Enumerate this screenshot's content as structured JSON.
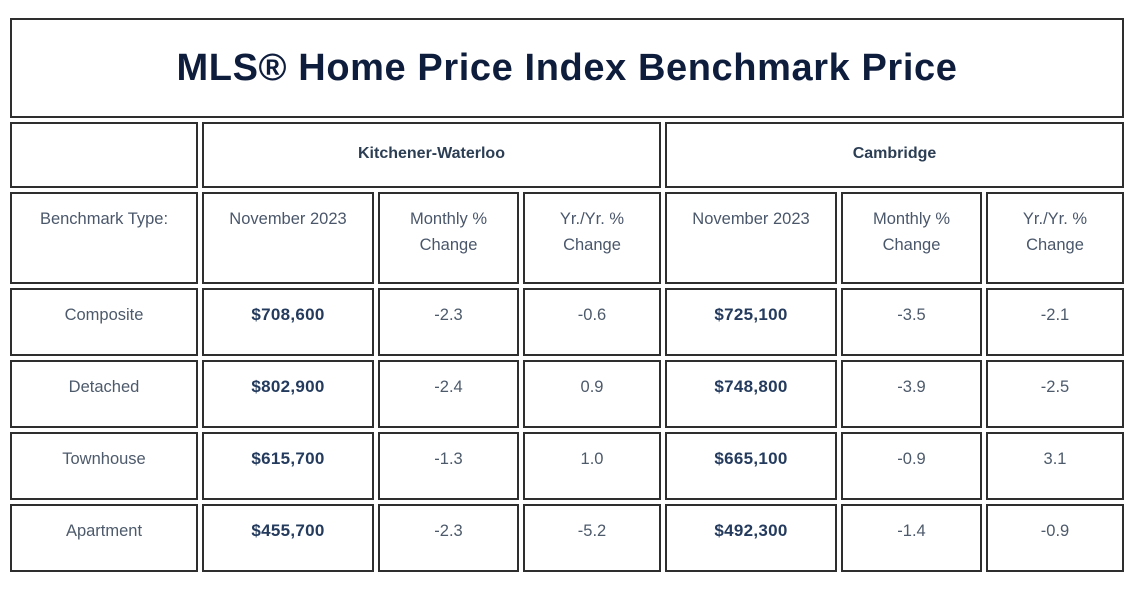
{
  "title": "MLS® Home Price Index Benchmark Price",
  "regions": {
    "left": "Kitchener-Waterloo",
    "right": "Cambridge"
  },
  "header": {
    "benchmark": "Benchmark Type:",
    "kw_month": "November 2023",
    "kw_monthly": "Monthly % Change",
    "kw_yoy": "Yr./Yr. % Change",
    "cam_month": "November 2023",
    "cam_monthly": "Monthly % Change",
    "cam_yoy": "Yr./Yr. % Change"
  },
  "rows": [
    {
      "type": "Composite",
      "kw_price": "$708,600",
      "kw_monthly": "-2.3",
      "kw_yoy": "-0.6",
      "cam_price": "$725,100",
      "cam_monthly": "-3.5",
      "cam_yoy": "-2.1"
    },
    {
      "type": "Detached",
      "kw_price": "$802,900",
      "kw_monthly": "-2.4",
      "kw_yoy": "0.9",
      "cam_price": "$748,800",
      "cam_monthly": "-3.9",
      "cam_yoy": "-2.5"
    },
    {
      "type": "Townhouse",
      "kw_price": "$615,700",
      "kw_monthly": "-1.3",
      "kw_yoy": "1.0",
      "cam_price": "$665,100",
      "cam_monthly": "-0.9",
      "cam_yoy": "3.1"
    },
    {
      "type": "Apartment",
      "kw_price": "$455,700",
      "kw_monthly": "-2.3",
      "kw_yoy": "-5.2",
      "cam_price": "$492,300",
      "cam_monthly": "-1.4",
      "cam_yoy": "-0.9"
    }
  ],
  "colors": {
    "border": "#2e2e2e",
    "title_text": "#0f1d3d",
    "region_text": "#2c3e54",
    "price_text": "#243b5e",
    "body_text": "#4d5a6b"
  },
  "chart_data": {
    "type": "table",
    "title": "MLS® Home Price Index Benchmark Price",
    "region_groups": [
      "Kitchener-Waterloo",
      "Cambridge"
    ],
    "columns": [
      "Benchmark Type:",
      "November 2023",
      "Monthly % Change",
      "Yr./Yr. % Change",
      "November 2023",
      "Monthly % Change",
      "Yr./Yr. % Change"
    ],
    "rows": [
      {
        "benchmark_type": "Composite",
        "kitchener_waterloo": {
          "november_2023_price": 708600,
          "monthly_pct_change": -2.3,
          "yr_yr_pct_change": -0.6
        },
        "cambridge": {
          "november_2023_price": 725100,
          "monthly_pct_change": -3.5,
          "yr_yr_pct_change": -2.1
        }
      },
      {
        "benchmark_type": "Detached",
        "kitchener_waterloo": {
          "november_2023_price": 802900,
          "monthly_pct_change": -2.4,
          "yr_yr_pct_change": 0.9
        },
        "cambridge": {
          "november_2023_price": 748800,
          "monthly_pct_change": -3.9,
          "yr_yr_pct_change": -2.5
        }
      },
      {
        "benchmark_type": "Townhouse",
        "kitchener_waterloo": {
          "november_2023_price": 615700,
          "monthly_pct_change": -1.3,
          "yr_yr_pct_change": 1.0
        },
        "cambridge": {
          "november_2023_price": 665100,
          "monthly_pct_change": -0.9,
          "yr_yr_pct_change": 3.1
        }
      },
      {
        "benchmark_type": "Apartment",
        "kitchener_waterloo": {
          "november_2023_price": 455700,
          "monthly_pct_change": -2.3,
          "yr_yr_pct_change": -5.2
        },
        "cambridge": {
          "november_2023_price": 492300,
          "monthly_pct_change": -1.4,
          "yr_yr_pct_change": -0.9
        }
      }
    ]
  }
}
